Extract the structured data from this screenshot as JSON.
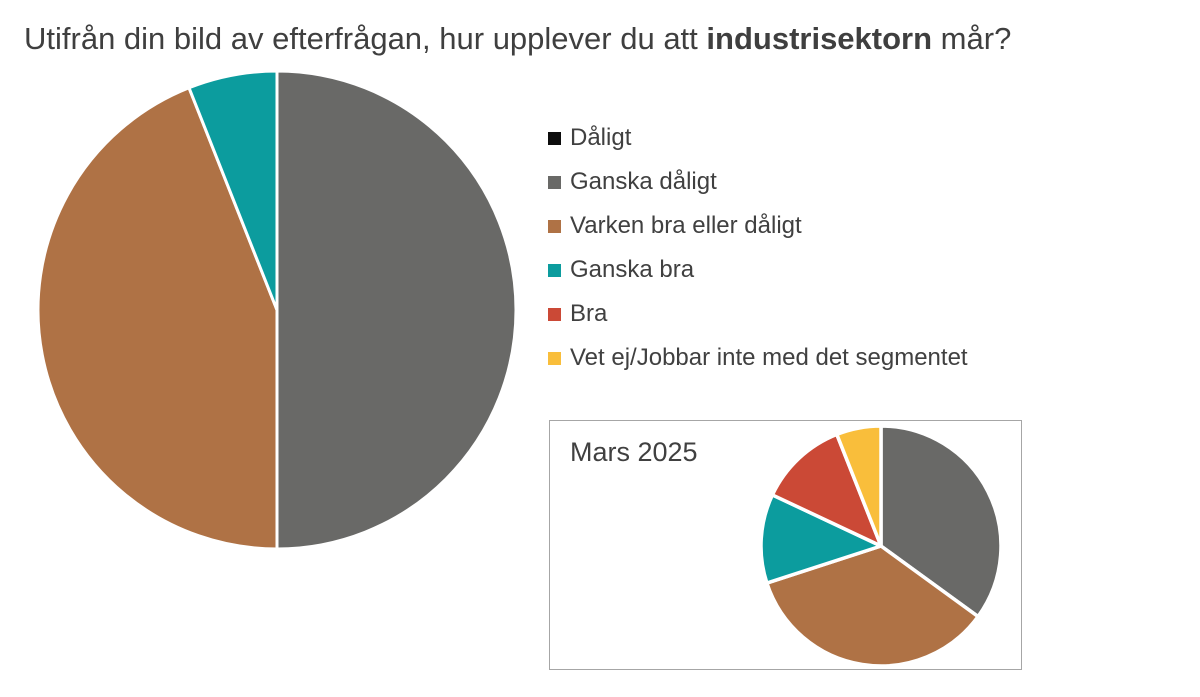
{
  "title": {
    "prefix": "Utifrån din bild av efterfrågan, hur upplever du att ",
    "bold": "industrisektorn",
    "suffix": " mår?"
  },
  "colors": {
    "text": "#3f3f3f",
    "inset_border": "#a6a6a6",
    "slice_gap": "#ffffff"
  },
  "legend": {
    "position": "right",
    "items": [
      {
        "label": "Dåligt",
        "color": "#0d0d0d"
      },
      {
        "label": "Ganska dåligt",
        "color": "#696967"
      },
      {
        "label": "Varken bra eller dåligt",
        "color": "#af7245"
      },
      {
        "label": "Ganska bra",
        "color": "#0c9c9e"
      },
      {
        "label": "Bra",
        "color": "#cb4936"
      },
      {
        "label": "Vet ej/Jobbar inte med det segmentet",
        "color": "#f9be3b"
      }
    ]
  },
  "inset": {
    "label": "Mars 2025"
  },
  "chart_data": [
    {
      "type": "pie",
      "name": "main-pie-current-period",
      "title": "",
      "categories": [
        "Dåligt",
        "Ganska dåligt",
        "Varken bra eller dåligt",
        "Ganska bra",
        "Bra",
        "Vet ej/Jobbar inte med det segmentet"
      ],
      "values": [
        0,
        50,
        44,
        6,
        0,
        0
      ],
      "unit": "percent",
      "colors": [
        "#0d0d0d",
        "#696967",
        "#af7245",
        "#0c9c9e",
        "#cb4936",
        "#f9be3b"
      ],
      "start_angle_deg": 0,
      "direction": "clockwise",
      "legend_position": "right",
      "data_labels": false
    },
    {
      "type": "pie",
      "name": "inset-pie-mars-2025",
      "title": "Mars 2025",
      "categories": [
        "Dåligt",
        "Ganska dåligt",
        "Varken bra eller dåligt",
        "Ganska bra",
        "Bra",
        "Vet ej/Jobbar inte med det segmentet"
      ],
      "values": [
        0,
        35,
        35,
        12,
        12,
        6
      ],
      "unit": "percent",
      "colors": [
        "#0d0d0d",
        "#696967",
        "#af7245",
        "#0c9c9e",
        "#cb4936",
        "#f9be3b"
      ],
      "start_angle_deg": 0,
      "direction": "clockwise",
      "legend_position": "none",
      "data_labels": false
    }
  ]
}
